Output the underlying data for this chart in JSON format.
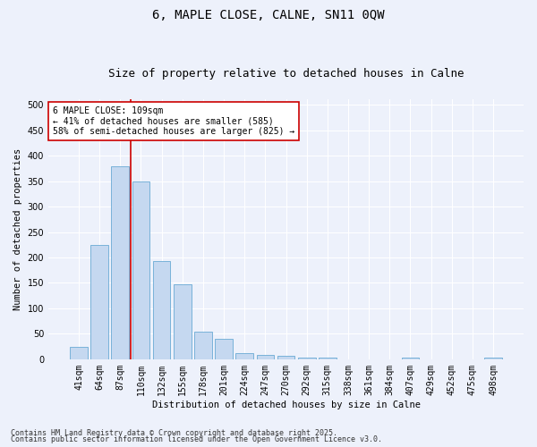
{
  "title1": "6, MAPLE CLOSE, CALNE, SN11 0QW",
  "title2": "Size of property relative to detached houses in Calne",
  "xlabel": "Distribution of detached houses by size in Calne",
  "ylabel": "Number of detached properties",
  "categories": [
    "41sqm",
    "64sqm",
    "87sqm",
    "110sqm",
    "132sqm",
    "155sqm",
    "178sqm",
    "201sqm",
    "224sqm",
    "247sqm",
    "270sqm",
    "292sqm",
    "315sqm",
    "338sqm",
    "361sqm",
    "384sqm",
    "407sqm",
    "429sqm",
    "452sqm",
    "475sqm",
    "498sqm"
  ],
  "values": [
    25,
    225,
    380,
    350,
    193,
    147,
    55,
    40,
    12,
    9,
    6,
    3,
    3,
    0,
    0,
    0,
    3,
    0,
    0,
    0,
    3
  ],
  "bar_color": "#c5d8f0",
  "bar_edge_color": "#6aaad4",
  "vline_color": "#cc0000",
  "annotation_text": "6 MAPLE CLOSE: 109sqm\n← 41% of detached houses are smaller (585)\n58% of semi-detached houses are larger (825) →",
  "annotation_box_color": "#ffffff",
  "annotation_box_edge": "#cc0000",
  "ylim": [
    0,
    510
  ],
  "yticks": [
    0,
    50,
    100,
    150,
    200,
    250,
    300,
    350,
    400,
    450,
    500
  ],
  "footer1": "Contains HM Land Registry data © Crown copyright and database right 2025.",
  "footer2": "Contains public sector information licensed under the Open Government Licence v3.0.",
  "bg_color": "#edf1fb",
  "plot_bg_color": "#edf1fb",
  "grid_color": "#ffffff",
  "title1_fontsize": 10,
  "title2_fontsize": 9,
  "axis_label_fontsize": 7.5,
  "tick_fontsize": 7,
  "annotation_fontsize": 7,
  "footer_fontsize": 6
}
